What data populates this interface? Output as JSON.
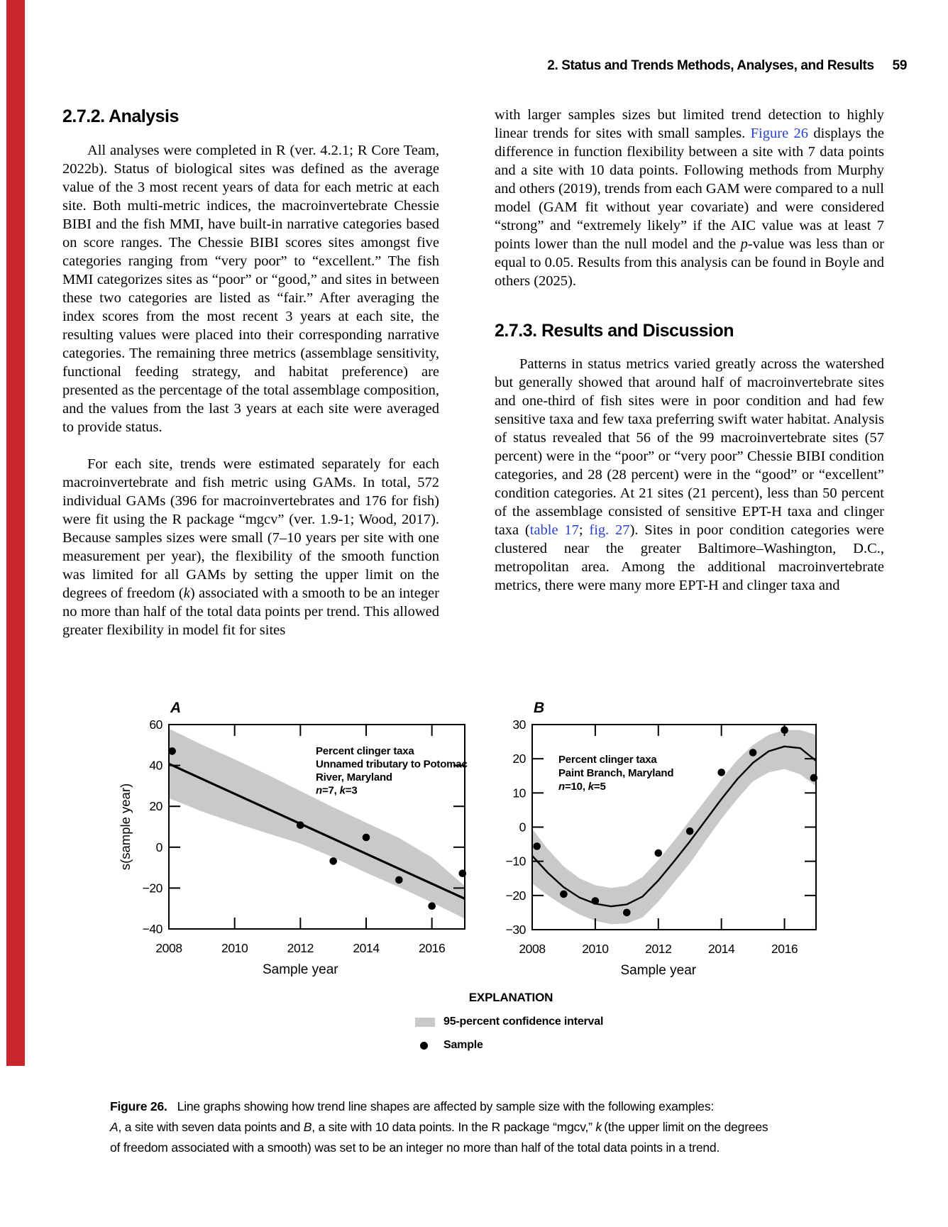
{
  "page": {
    "header_title": "2. Status and Trends Methods, Analyses, and Results",
    "page_number": "59"
  },
  "colors": {
    "edge_band": "#c9252c",
    "link_blue": "#2741cf",
    "confidence_gray": "#c9c9c9"
  },
  "sections": {
    "s272": {
      "heading": "2.7.2. Analysis",
      "p1": [
        {
          "t": "All analyses were completed in R (ver. 4.2.1; R Core Team, 2022b). Status of biological sites was defined as the average value of the 3 most recent years of data for each metric at each site. Both multi-metric indices, the macroinvertebrate Chessie BIBI and the fish MMI, have built-in narrative categories based on score ranges. The Chessie BIBI scores sites amongst five categories ranging from “very poor” to “excellent.” The fish MMI categorizes sites as “poor” or “good,” and sites in between these two categories are listed as “fair.” After averaging the index scores from the most recent 3 years at each site, the resulting values were placed into their corresponding narrative categories. The remaining three metrics (assemblage sensitivity, functional feeding strategy, and habitat preference) are presented as the percentage of the total assemblage composition, and the values from the last 3 years at each site were averaged to provide status."
        }
      ],
      "p2": [
        {
          "t": "For each site, trends were estimated separately for each macroinvertebrate and fish metric using GAMs. In total, 572 individual GAMs (396 for macroinvertebrates and 176 for fish) were fit using the R package “mgcv” (ver. 1.9-1; Wood, 2017). Because samples sizes were small (7–10 years per site with one measurement per year), the flexibility of the smooth function was limited for all GAMs by setting the upper limit on the degrees of freedom ("
        },
        {
          "i": "k"
        },
        {
          "t": ") associated with a smooth to be an integer no more than half of the total data points per trend. This allowed greater flexibility in model fit for sites"
        }
      ]
    },
    "continuation": {
      "p0": [
        {
          "t": "with larger samples sizes but limited trend detection to highly linear trends for sites with small samples. "
        },
        {
          "a": "Figure 26"
        },
        {
          "t": " displays the difference in function flexibility between a site with 7 data points and a site with 10 data points. Following methods from Murphy and others (2019), trends from each GAM were compared to a null model (GAM fit without year covariate) and were considered “strong” and “extremely likely” if the AIC value was at least 7 points lower than the null model and the "
        },
        {
          "i": "p"
        },
        {
          "t": "-value was less than or equal to 0.05. Results from this analysis can be found in Boyle and others (2025)."
        }
      ]
    },
    "s273": {
      "heading": "2.7.3. Results and Discussion",
      "p1": [
        {
          "t": "Patterns in status metrics varied greatly across the watershed but generally showed that around half of macroinvertebrate sites and one-third of fish sites were in poor condition and had few sensitive taxa and few taxa preferring swift water habitat. Analysis of status revealed that 56 of the 99 macroinvertebrate sites (57 percent) were in the “poor” or “very poor” Chessie BIBI condition categories, and 28 (28 percent) were in the “good” or “excellent” condition categories. At 21 sites (21 percent), less than 50 percent of the assemblage consisted of sensitive EPT-H taxa and clinger taxa ("
        },
        {
          "a": "table 17"
        },
        {
          "t": "; "
        },
        {
          "a": "fig. 27"
        },
        {
          "t": "). Sites in poor condition categories were clustered near the greater Baltimore–Washington, D.C., metropolitan area. Among the additional macroinvertebrate metrics, there were many more EPT-H and clinger taxa and"
        }
      ]
    }
  },
  "chart_data": {
    "type": "line",
    "description": "GAM trend fits with 95-percent confidence bands",
    "panels": [
      {
        "id": "A",
        "label": "A",
        "annotation_lines": [
          [
            "Percent clinger taxa"
          ],
          [
            "Unnamed tributary to Potomac"
          ],
          [
            "River, Maryland"
          ],
          [
            {
              "i": "n"
            },
            "=7, ",
            {
              "i": "k"
            },
            "=3"
          ]
        ],
        "xlabel": "Sample year",
        "ylabel": "s(sample year)",
        "xlim": [
          2008,
          2017
        ],
        "ylim": [
          -40,
          60
        ],
        "xticks": [
          2008,
          2010,
          2012,
          2014,
          2016
        ],
        "xticklabels": [
          "2008",
          "2010",
          "2012",
          "2014",
          "2016"
        ],
        "yticks": [
          60,
          40,
          20,
          0,
          -20,
          -40
        ],
        "yticklabels": [
          "60",
          "40",
          "20",
          "0",
          "−20",
          "−40"
        ],
        "points": {
          "x": [
            2008.1,
            2012,
            2013,
            2014,
            2015,
            2016,
            2016.93
          ],
          "y": [
            47,
            10.8,
            -6.8,
            4.8,
            -16,
            -28.8,
            -12.8
          ]
        },
        "trend": {
          "x": [
            2008,
            2017
          ],
          "y": [
            40.8,
            -25.2
          ],
          "width": 3.2
        },
        "band": {
          "x": [
            2008,
            2009,
            2010,
            2011,
            2012,
            2013,
            2014,
            2015,
            2016,
            2017
          ],
          "upper": [
            58,
            50.2,
            43,
            35.5,
            27.5,
            19.5,
            12,
            4.5,
            -5,
            -19
          ],
          "lower": [
            24,
            17.5,
            12,
            6.8,
            1.8,
            -5,
            -12.5,
            -19.5,
            -27,
            -35
          ]
        }
      },
      {
        "id": "B",
        "label": "B",
        "annotation_lines": [
          [
            "Percent clinger taxa"
          ],
          [
            "Paint Branch, Maryland"
          ],
          [
            {
              "i": "n"
            },
            "=10, ",
            {
              "i": "k"
            },
            "=5"
          ]
        ],
        "xlabel": "Sample year",
        "ylabel": "",
        "xlim": [
          2008,
          2017
        ],
        "ylim": [
          -30,
          30
        ],
        "xticks": [
          2008,
          2010,
          2012,
          2014,
          2016
        ],
        "xticklabels": [
          "2008",
          "2010",
          "2012",
          "2014",
          "2016"
        ],
        "yticks": [
          30,
          20,
          10,
          0,
          -10,
          -20,
          -30
        ],
        "yticklabels": [
          "30",
          "20",
          "10",
          "0",
          "−10",
          "−20",
          "−30"
        ],
        "points": {
          "x": [
            2008.15,
            2009,
            2010,
            2011,
            2012,
            2013,
            2014,
            2015,
            2016,
            2016.93
          ],
          "y": [
            -5.6,
            -19.6,
            -21.6,
            -25,
            -7.6,
            -1.2,
            16,
            21.8,
            28.4,
            14.4
          ]
        },
        "trend": {
          "x": [
            2008,
            2008.5,
            2009,
            2009.5,
            2010,
            2010.5,
            2011,
            2011.5,
            2012,
            2012.5,
            2013,
            2013.5,
            2014,
            2014.5,
            2015,
            2015.5,
            2016,
            2016.5,
            2017
          ],
          "y": [
            -8.4,
            -13.4,
            -17.6,
            -20.6,
            -22.4,
            -23.2,
            -22.6,
            -20.3,
            -15.6,
            -10,
            -4.2,
            2,
            8.2,
            14,
            18.8,
            22.2,
            23.6,
            23.1,
            19.4
          ],
          "width": 2.4
        },
        "band": {
          "x": [
            2008,
            2008.5,
            2009,
            2009.5,
            2010,
            2010.5,
            2011,
            2011.5,
            2012,
            2012.5,
            2013,
            2013.5,
            2014,
            2014.5,
            2015,
            2015.5,
            2016,
            2016.5,
            2017
          ],
          "upper": [
            -0.5,
            -6.5,
            -11.5,
            -15,
            -17,
            -17.8,
            -17.2,
            -14.6,
            -9.6,
            -4,
            2,
            8,
            14,
            19.6,
            24,
            27,
            28.4,
            28.4,
            27
          ],
          "lower": [
            -16.5,
            -20,
            -23,
            -25.6,
            -27.4,
            -28.4,
            -28.2,
            -26.4,
            -21.8,
            -16.2,
            -10.6,
            -4,
            2.4,
            8.2,
            13.4,
            16,
            17,
            15.4,
            12
          ]
        }
      }
    ]
  },
  "figure": {
    "explanation": {
      "title": "EXPLANATION",
      "band_label": "95-percent confidence interval",
      "sample_label": "Sample"
    },
    "caption_lines": [
      [
        {
          "b": "Figure 26."
        },
        {
          "t": "Line graphs showing how trend line shapes are affected by sample size with the following examples:"
        }
      ],
      [
        {
          "i": "A"
        },
        {
          "t": ", a site with seven data points and "
        },
        {
          "i": "B"
        },
        {
          "t": ", a site with 10 data points. In the R package “mgcv,” "
        },
        {
          "i": "k"
        },
        {
          "t": " (the upper limit on the degrees"
        }
      ],
      [
        {
          "t": "of freedom associated with a smooth) was set to be an integer no more than half of the total data points in a trend."
        }
      ]
    ]
  }
}
